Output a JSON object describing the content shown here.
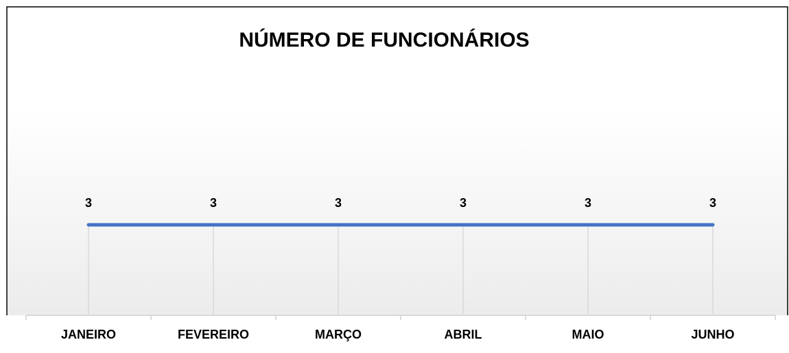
{
  "chart_data": {
    "type": "line",
    "title": "NÚMERO DE FUNCIONÁRIOS",
    "categories": [
      "JANEIRO",
      "FEVEREIRO",
      "MARÇO",
      "ABRIL",
      "MAIO",
      "JUNHO"
    ],
    "series": [
      {
        "name": "NÚMERO DE FUNCIONÁRIOS",
        "color": "#4472c4",
        "values": [
          3,
          3,
          3,
          3,
          3,
          3
        ]
      }
    ],
    "ylim": [
      0,
      7.5
    ],
    "drop_lines": true,
    "data_labels": true
  }
}
